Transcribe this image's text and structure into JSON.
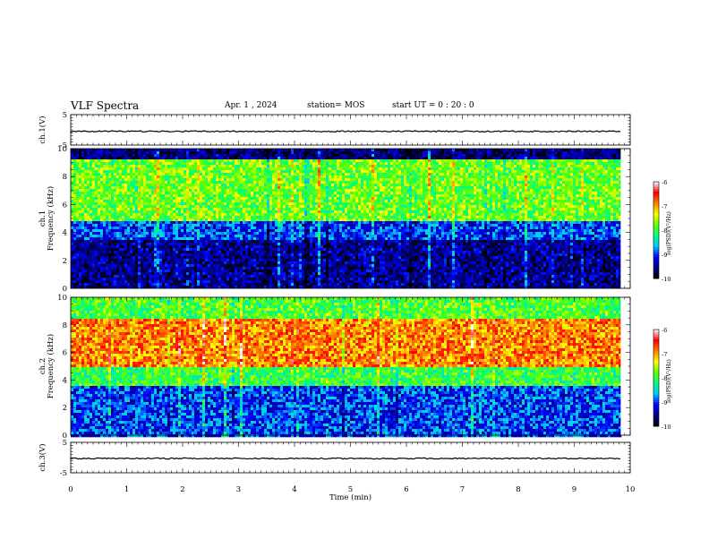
{
  "header": {
    "title": "VLF Spectra",
    "date": "Apr. 1 , 2024",
    "station": "station= MOS",
    "start_ut": "start  UT  =   0 : 20 : 0"
  },
  "chart_data": [
    {
      "type": "line",
      "panel": "ch.1 waveform",
      "ylabel": "ch.1(V)",
      "ylim": [
        -5,
        5
      ],
      "yticks": [
        "5",
        "-5"
      ],
      "xlim": [
        0,
        10
      ],
      "series": [
        {
          "values_note_level": -0.5
        }
      ]
    },
    {
      "type": "heatmap",
      "panel": "ch.1 spectrogram",
      "ylabel": "ch.1\nFrequency (kHz)",
      "ylim": [
        0,
        10
      ],
      "yticks": [
        "0",
        "2",
        "4",
        "6",
        "8",
        "10"
      ],
      "xlim": [
        0,
        9.83
      ],
      "bands": [
        {
          "from_khz": 0,
          "to_khz": 3.6,
          "level": -9.5
        },
        {
          "from_khz": 3.6,
          "to_khz": 5.0,
          "level": -9.0
        },
        {
          "from_khz": 5.0,
          "to_khz": 9.3,
          "level": -7.8
        },
        {
          "from_khz": 9.3,
          "to_khz": 10,
          "level": -9.6
        }
      ],
      "colorbar": {
        "label": "log(PSD)(V²/Hz)",
        "range": [
          -10,
          -6
        ],
        "ticks": [
          "-6",
          "-7",
          "-8",
          "-9",
          "-10"
        ]
      }
    },
    {
      "type": "heatmap",
      "panel": "ch.2 spectrogram",
      "ylabel": "ch.2\nFrequency (kHz)",
      "ylim": [
        0,
        10
      ],
      "yticks": [
        "0",
        "2",
        "4",
        "6",
        "8",
        "10"
      ],
      "xlim": [
        0,
        9.83
      ],
      "bands": [
        {
          "from_khz": 0,
          "to_khz": 3.6,
          "level": -9.0
        },
        {
          "from_khz": 3.6,
          "to_khz": 5.0,
          "level": -8.0
        },
        {
          "from_khz": 5.0,
          "to_khz": 8.5,
          "level": -6.9
        },
        {
          "from_khz": 8.5,
          "to_khz": 10,
          "level": -7.9
        }
      ],
      "colorbar": {
        "label": "log(PSD)(V²/Hz)",
        "range": [
          -10,
          -6
        ],
        "ticks": [
          "-6",
          "-7",
          "-8",
          "-9",
          "-10"
        ]
      }
    },
    {
      "type": "line",
      "panel": "ch.3 waveform",
      "ylabel": "ch.3(V)",
      "ylim": [
        -5,
        5
      ],
      "yticks": [
        "5",
        "-5"
      ],
      "xlim": [
        0,
        10
      ],
      "series": [
        {
          "values_note_level": -0.3
        }
      ]
    }
  ],
  "xaxis": {
    "label": "Time (min)",
    "ticks": [
      "0",
      "1",
      "2",
      "3",
      "4",
      "5",
      "6",
      "7",
      "8",
      "9",
      "10"
    ],
    "range": [
      0,
      10
    ]
  },
  "colormap": [
    "#000000",
    "#000080",
    "#0000ff",
    "#00c8ff",
    "#00ff80",
    "#60ff00",
    "#ffff00",
    "#ff8000",
    "#ff0000",
    "#ffffff"
  ]
}
